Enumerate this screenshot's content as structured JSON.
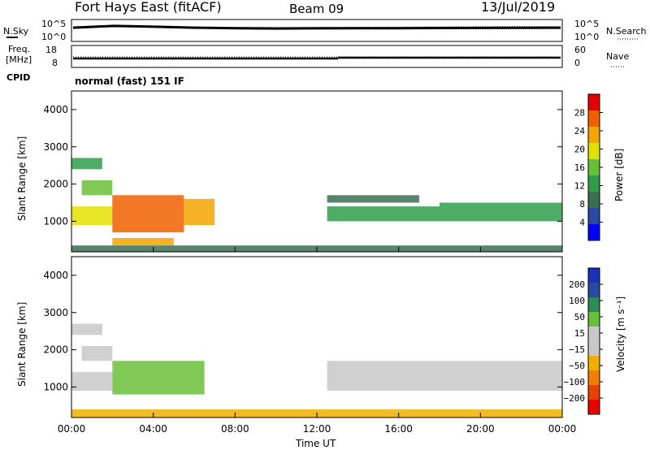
{
  "header": {
    "station": "Fort Hays East (fitACF)",
    "beam": "Beam 09",
    "date": "13/Jul/2019",
    "mode": "normal (fast) 151 IF"
  },
  "colors": {
    "noise": "#000000",
    "power_scale": [
      "#0000ff",
      "#2a4aa0",
      "#3a6f52",
      "#2e9e4a",
      "#6abf3a",
      "#e3e000",
      "#f5a400",
      "#f06000",
      "#e80000"
    ],
    "velocity_scale": [
      "#1c2fb8",
      "#2a4aa0",
      "#2e8b5a",
      "#6abf3a",
      "#c8c8c8",
      "#c8c8c8",
      "#f0b000",
      "#f08000",
      "#e84000",
      "#e80000"
    ]
  },
  "chart_data": [
    {
      "type": "line",
      "panel": "noise",
      "left_labels": [
        "N.Sky",
        "10^5",
        "10^0"
      ],
      "right_labels": [
        "N.Search",
        "10^5",
        "10^0"
      ],
      "scale": "log",
      "ylim": [
        1,
        100000
      ],
      "series": [
        {
          "name": "N.Sky",
          "x": [
            "00:00",
            "02:00",
            "04:00",
            "06:00",
            "08:00",
            "10:00",
            "12:00",
            "14:00",
            "16:00",
            "18:00",
            "20:00",
            "22:00",
            "24:00"
          ],
          "values": [
            2000,
            7000,
            4000,
            2000,
            1500,
            1200,
            1300,
            1400,
            1500,
            1600,
            1700,
            1800,
            2000
          ]
        },
        {
          "name": "N.Search",
          "x": [
            "00:00",
            "02:00",
            "04:00",
            "06:00",
            "08:00",
            "10:00",
            "12:00",
            "14:00",
            "16:00",
            "18:00",
            "20:00",
            "22:00",
            "24:00"
          ],
          "values": [
            4000,
            8000,
            6000,
            3000,
            2500,
            2500,
            2600,
            2800,
            3000,
            3500,
            4000,
            4500,
            4500
          ]
        }
      ]
    },
    {
      "type": "line",
      "panel": "frequency",
      "left_labels": [
        "Freq.",
        "[MHz]",
        "18",
        "8"
      ],
      "right_labels": [
        "Nave",
        "60",
        "0"
      ],
      "ylim_left": [
        8,
        18
      ],
      "ylim_right": [
        0,
        60
      ],
      "series": [
        {
          "name": "Freq.",
          "x": [
            "00:00",
            "12:00",
            "13:00",
            "24:00"
          ],
          "values": [
            11,
            11,
            11.2,
            11.2
          ]
        },
        {
          "name": "Nave",
          "x": [
            "00:00",
            "24:00"
          ],
          "values": [
            22,
            22
          ]
        }
      ],
      "cpid_label": "CPID"
    },
    {
      "type": "heatmap",
      "panel": "power",
      "ylabel": "Slant Range [km]",
      "yticks": [
        "1000",
        "2000",
        "3000",
        "4000"
      ],
      "ylim": [
        180,
        4500
      ],
      "colorbar_label": "Power [dB]",
      "colorbar_ticks": [
        "4",
        "8",
        "12",
        "16",
        "20",
        "24",
        "28"
      ],
      "clim": [
        0,
        32
      ],
      "regions": [
        {
          "t0": 0.0,
          "t1": 1.5,
          "r0": 2400,
          "r1": 2700,
          "value": 14
        },
        {
          "t0": 0.5,
          "t1": 2.0,
          "r0": 1700,
          "r1": 2100,
          "value": 16
        },
        {
          "t0": 0.0,
          "t1": 2.0,
          "r0": 900,
          "r1": 1400,
          "value": 20
        },
        {
          "t0": 2.0,
          "t1": 5.5,
          "r0": 700,
          "r1": 1700,
          "value": 26
        },
        {
          "t0": 5.5,
          "t1": 7.0,
          "r0": 900,
          "r1": 1600,
          "value": 22
        },
        {
          "t0": 2.0,
          "t1": 5.0,
          "r0": 350,
          "r1": 550,
          "value": 24
        },
        {
          "t0": 0.0,
          "t1": 24.0,
          "r0": 180,
          "r1": 350,
          "value": 10
        },
        {
          "t0": 12.5,
          "t1": 18.0,
          "r0": 1000,
          "r1": 1400,
          "value": 14
        },
        {
          "t0": 12.5,
          "t1": 17.0,
          "r0": 1500,
          "r1": 1700,
          "value": 10
        },
        {
          "t0": 18.0,
          "t1": 24.0,
          "r0": 1000,
          "r1": 1500,
          "value": 12
        }
      ]
    },
    {
      "type": "heatmap",
      "panel": "velocity",
      "ylabel": "Slant Range [km]",
      "yticks": [
        "1000",
        "2000",
        "3000",
        "4000"
      ],
      "ylim": [
        180,
        4500
      ],
      "xlabel": "Time UT",
      "xticks": [
        "00:00",
        "04:00",
        "08:00",
        "12:00",
        "16:00",
        "20:00",
        "00:00"
      ],
      "xlim": [
        0,
        24
      ],
      "colorbar_label": "Velocity [m s⁻¹]",
      "colorbar_ticks": [
        "200",
        "100",
        "50",
        "15",
        "−15",
        "−50",
        "−100",
        "−200"
      ],
      "regions": [
        {
          "t0": 0.0,
          "t1": 1.5,
          "r0": 2400,
          "r1": 2700,
          "value": 0
        },
        {
          "t0": 0.5,
          "t1": 2.0,
          "r0": 1700,
          "r1": 2100,
          "value": 0
        },
        {
          "t0": 0.0,
          "t1": 2.0,
          "r0": 900,
          "r1": 1400,
          "value": 0
        },
        {
          "t0": 2.0,
          "t1": 6.5,
          "r0": 800,
          "r1": 1700,
          "value": 40
        },
        {
          "t0": 0.0,
          "t1": 24.0,
          "r0": 180,
          "r1": 400,
          "value": -30
        },
        {
          "t0": 12.5,
          "t1": 24.0,
          "r0": 900,
          "r1": 1700,
          "value": 0
        }
      ]
    }
  ]
}
